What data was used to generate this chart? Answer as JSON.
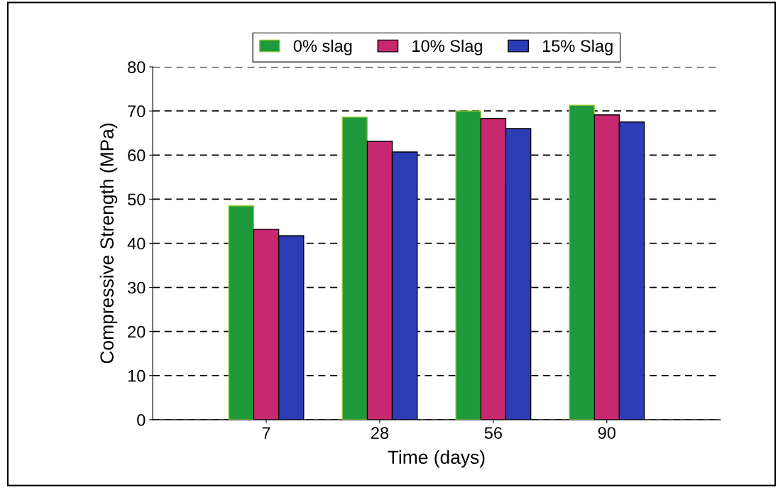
{
  "chart_data": {
    "type": "bar",
    "xlabel": "Time (days)",
    "ylabel": "Compressive Strength (MPa)",
    "categories": [
      "7",
      "28",
      "56",
      "90"
    ],
    "series": [
      {
        "name": "0% slag",
        "color": "#1e9a3c",
        "values": [
          48.5,
          68.6,
          70.0,
          71.3
        ]
      },
      {
        "name": "10% Slag",
        "color": "#c8286e",
        "values": [
          43.2,
          63.1,
          68.3,
          69.1
        ]
      },
      {
        "name": "15% Slag",
        "color": "#2c3cb4",
        "values": [
          41.7,
          60.7,
          66.0,
          67.5
        ]
      }
    ],
    "ylim": [
      0,
      80
    ],
    "yticks": [
      0,
      10,
      20,
      30,
      40,
      50,
      60,
      70,
      80
    ],
    "grid": "y",
    "legend": "top"
  }
}
